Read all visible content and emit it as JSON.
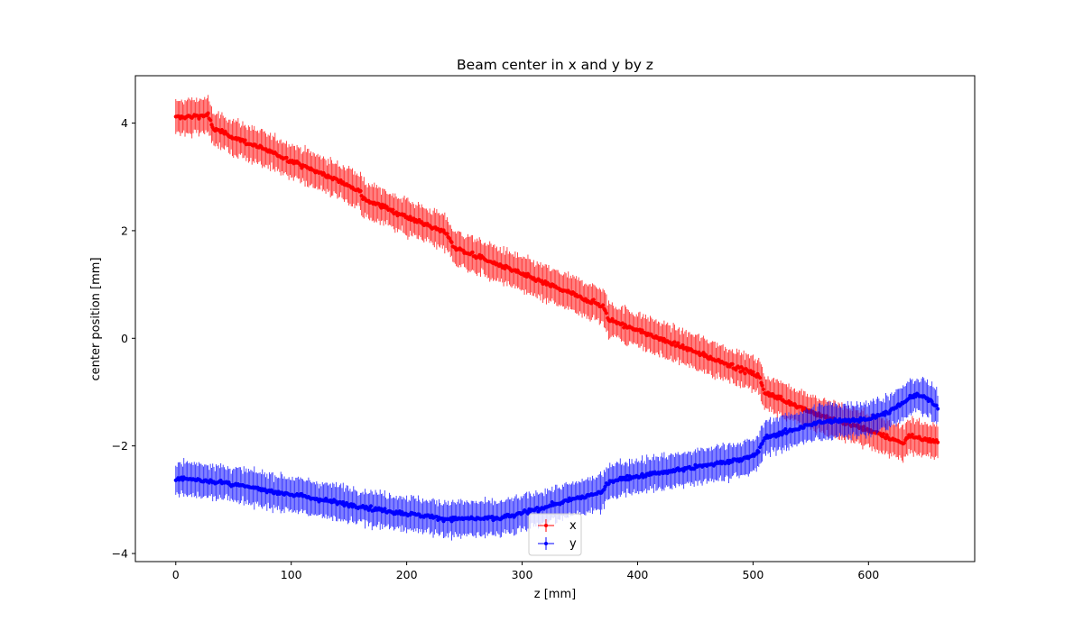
{
  "chart_data": {
    "type": "scatter",
    "title": "Beam center in x and y by z",
    "xlabel": "z [mm]",
    "ylabel": "center position [mm]",
    "xlim": [
      -35,
      692
    ],
    "ylim": [
      -4.15,
      4.88
    ],
    "xticks": [
      0,
      100,
      200,
      300,
      400,
      500,
      600
    ],
    "yticks": [
      -4,
      -2,
      0,
      2,
      4
    ],
    "ytick_labels": [
      "−4",
      "−2",
      "0",
      "2",
      "4"
    ],
    "grid": false,
    "legend_position": "bottom-center",
    "series": [
      {
        "name": "x",
        "color": "#ff0000",
        "error_half_width": 0.3,
        "knots_x": [
          0,
          28,
          32,
          100,
          160,
          162,
          235,
          240,
          370,
          375,
          505,
          510,
          560,
          600,
          630,
          635,
          660
        ],
        "knots_y": [
          4.1,
          4.15,
          3.9,
          3.3,
          2.75,
          2.6,
          1.95,
          1.7,
          0.6,
          0.35,
          -0.7,
          -1.0,
          -1.45,
          -1.7,
          -1.95,
          -1.8,
          -1.95
        ]
      },
      {
        "name": "y",
        "color": "#0000ff",
        "error_half_width": 0.3,
        "knots_x": [
          0,
          30,
          100,
          180,
          230,
          280,
          300,
          370,
          375,
          450,
          500,
          505,
          510,
          560,
          600,
          620,
          640,
          650,
          660
        ],
        "knots_y": [
          -2.6,
          -2.65,
          -2.9,
          -3.2,
          -3.35,
          -3.35,
          -3.25,
          -2.85,
          -2.65,
          -2.4,
          -2.2,
          -2.1,
          -1.85,
          -1.55,
          -1.5,
          -1.35,
          -1.05,
          -1.1,
          -1.3
        ]
      }
    ]
  }
}
